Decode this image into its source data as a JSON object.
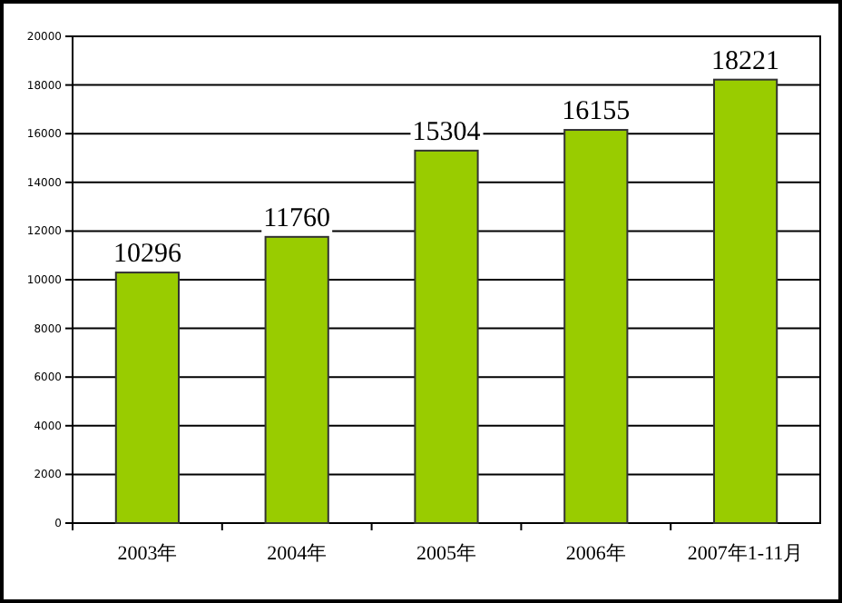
{
  "chart_data": {
    "type": "bar",
    "categories": [
      "2003年",
      "2004年",
      "2005年",
      "2006年",
      "2007年1-11月"
    ],
    "values": [
      10296,
      11760,
      15304,
      16155,
      18221
    ],
    "color": "#99cc00",
    "ylim": [
      0,
      20000
    ],
    "yticks": [
      0,
      2000,
      4000,
      6000,
      8000,
      10000,
      12000,
      14000,
      16000,
      18000,
      20000
    ],
    "grid": "y",
    "data_labels": true
  }
}
